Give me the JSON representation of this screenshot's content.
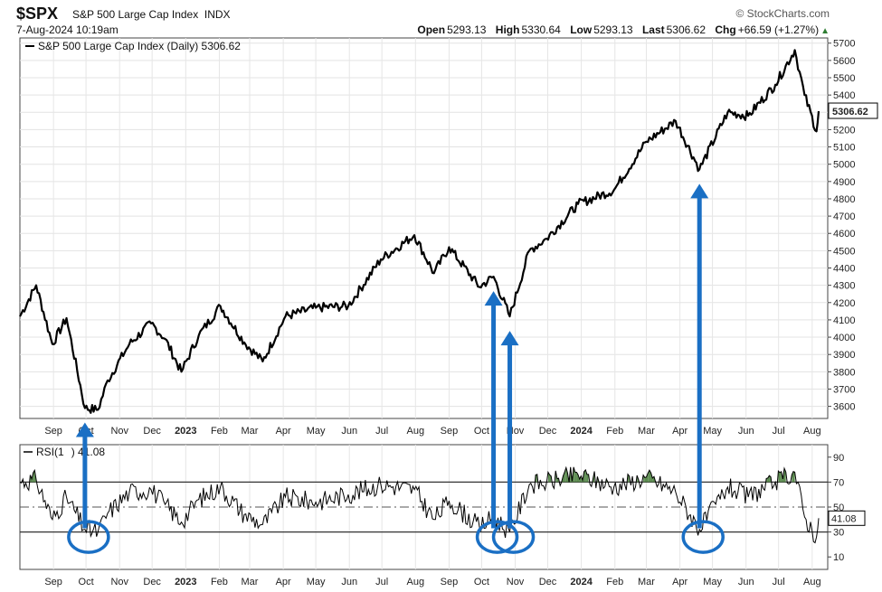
{
  "header": {
    "symbol": "$SPX",
    "name": "S&P 500 Large Cap Index",
    "exchange": "INDX",
    "date": "7-Aug-2024 10:19am",
    "brand": "© StockCharts.com",
    "open_label": "Open",
    "open": "5293.13",
    "high_label": "High",
    "high": "5330.64",
    "low_label": "Low",
    "low": "5293.13",
    "last_label": "Last",
    "last": "5306.62",
    "chg_label": "Chg",
    "chg": "+66.59 (+1.27%)"
  },
  "chart_data": [
    {
      "type": "line",
      "legend": "S&P 500 Large Cap Index (Daily) 5306.62",
      "last_value_label": "5306.62",
      "y_ticks": [
        3600,
        3700,
        3800,
        3900,
        4000,
        4100,
        4200,
        4300,
        4400,
        4500,
        4600,
        4700,
        4800,
        4900,
        5000,
        5100,
        5200,
        5300,
        5400,
        5500,
        5600,
        5700
      ],
      "ylim": [
        3530,
        5730
      ],
      "x_tick_labels": [
        "Sep",
        "Oct",
        "Nov",
        "Dec",
        "2023",
        "Feb",
        "Mar",
        "Apr",
        "May",
        "Jun",
        "Jul",
        "Aug",
        "Sep",
        "Oct",
        "Nov",
        "Dec",
        "2024",
        "Feb",
        "Mar",
        "Apr",
        "May",
        "Jun",
        "Jul",
        "Aug"
      ],
      "x": [
        "2022-08-01",
        "2022-08-16",
        "2022-08-31",
        "2022-09-13",
        "2022-09-30",
        "2022-10-12",
        "2022-10-21",
        "2022-11-10",
        "2022-11-30",
        "2022-12-13",
        "2022-12-28",
        "2023-01-13",
        "2023-02-02",
        "2023-02-24",
        "2023-03-13",
        "2023-04-03",
        "2023-05-01",
        "2023-05-31",
        "2023-06-30",
        "2023-07-31",
        "2023-08-18",
        "2023-09-01",
        "2023-09-29",
        "2023-10-12",
        "2023-10-27",
        "2023-11-14",
        "2023-11-30",
        "2023-12-29",
        "2024-01-31",
        "2024-03-01",
        "2024-03-28",
        "2024-04-19",
        "2024-05-15",
        "2024-06-03",
        "2024-06-28",
        "2024-07-16",
        "2024-07-25",
        "2024-08-05",
        "2024-08-07"
      ],
      "values": [
        4120,
        4300,
        3960,
        4110,
        3590,
        3580,
        3750,
        3960,
        4080,
        3990,
        3800,
        4010,
        4180,
        3970,
        3860,
        4120,
        4170,
        4180,
        4450,
        4590,
        4370,
        4520,
        4290,
        4350,
        4120,
        4500,
        4570,
        4770,
        4850,
        5130,
        5250,
        4970,
        5300,
        5280,
        5460,
        5660,
        5400,
        5190,
        5306.62
      ],
      "arrows_at": [
        "2022-09-30",
        "2023-10-12",
        "2023-10-27",
        "2024-04-19"
      ]
    },
    {
      "type": "line",
      "legend_prefix": "RSI(1",
      "legend_suffix": ") 41.08",
      "last_value_label": "41.08",
      "y_ticks": [
        10,
        30,
        50,
        70,
        90
      ],
      "ylim": [
        0,
        100
      ],
      "overbought": 70,
      "oversold": 30,
      "midline": 50,
      "x_tick_labels": [
        "Sep",
        "Oct",
        "Nov",
        "Dec",
        "2023",
        "Feb",
        "Mar",
        "Apr",
        "May",
        "Jun",
        "Jul",
        "Aug",
        "Sep",
        "Oct",
        "Nov",
        "Dec",
        "2024",
        "Feb",
        "Mar",
        "Apr",
        "May",
        "Jun",
        "Jul",
        "Aug"
      ],
      "x": [
        "2022-08-01",
        "2022-08-16",
        "2022-08-31",
        "2022-09-13",
        "2022-09-30",
        "2022-10-12",
        "2022-10-21",
        "2022-11-10",
        "2022-11-30",
        "2022-12-13",
        "2022-12-28",
        "2023-01-13",
        "2023-02-02",
        "2023-02-24",
        "2023-03-13",
        "2023-04-03",
        "2023-05-01",
        "2023-05-31",
        "2023-06-30",
        "2023-07-31",
        "2023-08-18",
        "2023-09-01",
        "2023-09-29",
        "2023-10-12",
        "2023-10-27",
        "2023-11-14",
        "2023-11-30",
        "2023-12-29",
        "2024-01-31",
        "2024-03-01",
        "2024-03-28",
        "2024-04-19",
        "2024-05-15",
        "2024-06-03",
        "2024-06-28",
        "2024-07-16",
        "2024-07-25",
        "2024-08-05",
        "2024-08-07"
      ],
      "values": [
        70,
        72,
        40,
        58,
        32,
        30,
        45,
        62,
        64,
        52,
        38,
        56,
        66,
        44,
        36,
        58,
        54,
        60,
        68,
        64,
        40,
        55,
        34,
        42,
        30,
        68,
        70,
        76,
        66,
        74,
        62,
        32,
        66,
        58,
        70,
        78,
        42,
        26,
        41.08
      ],
      "circles_at": [
        "2022-09-30",
        "2023-10-12",
        "2023-10-27",
        "2024-04-19"
      ]
    }
  ]
}
